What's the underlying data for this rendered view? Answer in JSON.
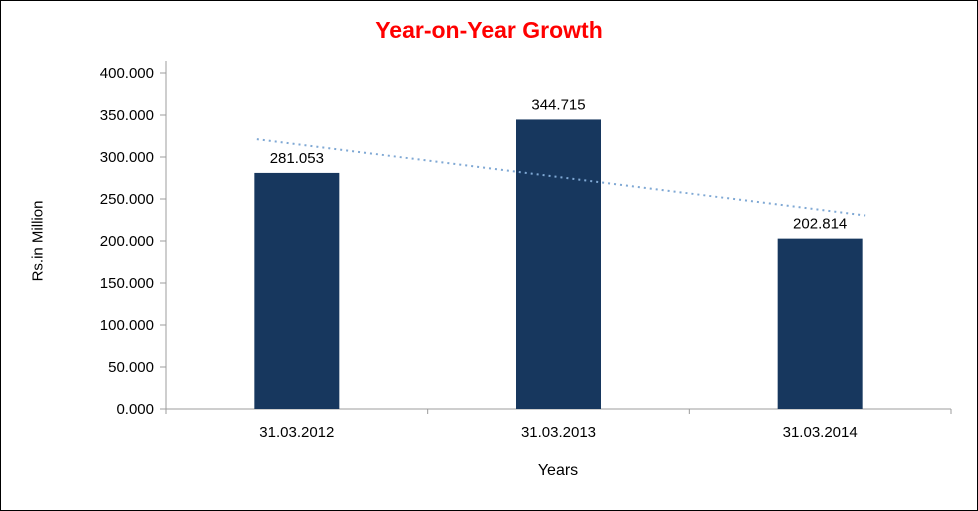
{
  "chart_data": {
    "type": "bar",
    "title": "Year-on-Year Growth",
    "title_color": "#FF0000",
    "xlabel": "Years",
    "ylabel": "Rs.in Million",
    "categories": [
      "31.03.2012",
      "31.03.2013",
      "31.03.2014"
    ],
    "values": [
      281.053,
      344.715,
      202.814
    ],
    "data_labels": [
      "281.053",
      "344.715",
      "202.814"
    ],
    "ylim": [
      0,
      400
    ],
    "ytick_step": 50,
    "ytick_labels": [
      "0.000",
      "50.000",
      "100.000",
      "150.000",
      "200.000",
      "250.000",
      "300.000",
      "350.000",
      "400.000"
    ],
    "grid": false,
    "legend": "none",
    "bar_color": "#17375E",
    "axis_color": "#9C9C9C",
    "text_color": "#000000",
    "trendline": {
      "style": "dotted",
      "color": "#7FA8D4",
      "start_value": 315.31,
      "end_value": 237.07
    }
  }
}
